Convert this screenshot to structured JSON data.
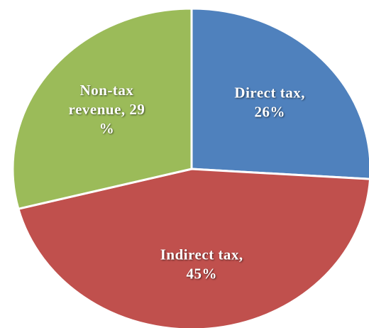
{
  "chart_data": {
    "type": "pie",
    "values": [
      26,
      45,
      29
    ],
    "value_labels": [
      "Direct tax, 26%",
      "Indirect tax, 45%",
      "Non-tax revenue, 29 %"
    ],
    "colors": [
      "#4f81bd",
      "#c0504d",
      "#9bbb59"
    ]
  }
}
